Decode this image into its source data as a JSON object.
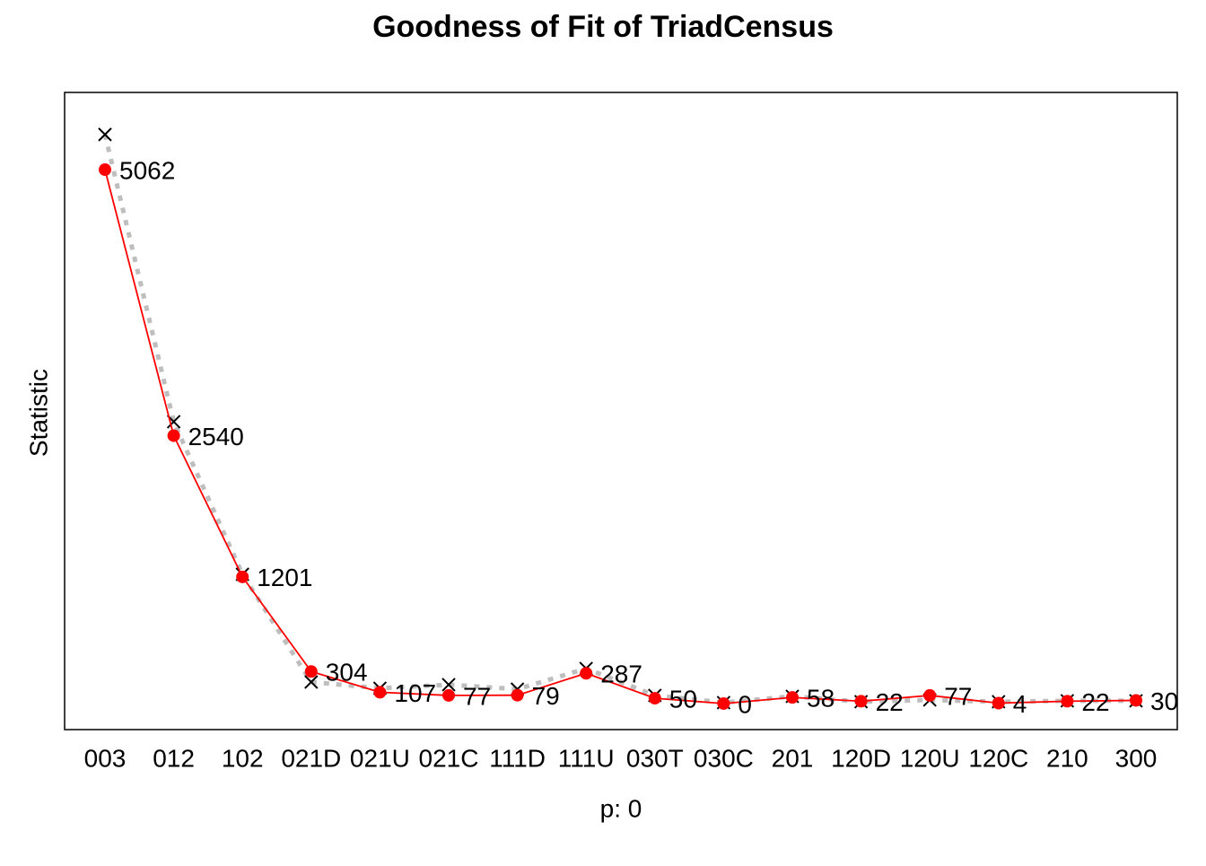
{
  "chart_data": {
    "type": "line",
    "title": "Goodness of Fit of TriadCensus",
    "xlabel": "p: 0",
    "ylabel": "Statistic",
    "categories": [
      "003",
      "012",
      "102",
      "021D",
      "021U",
      "021C",
      "111D",
      "111U",
      "030T",
      "030C",
      "201",
      "120D",
      "120U",
      "120C",
      "210",
      "300"
    ],
    "values": [
      5062,
      2540,
      1201,
      304,
      107,
      77,
      79,
      287,
      50,
      0,
      58,
      22,
      77,
      4,
      22,
      30
    ],
    "color": "#ff0000",
    "simulated_values": [
      5395,
      2672,
      1225,
      204,
      145,
      179,
      136,
      332,
      77,
      9,
      68,
      17,
      34,
      17,
      26,
      26
    ],
    "simulated_color": "#bebebe",
    "ylim": [
      -247,
      5794
    ]
  }
}
